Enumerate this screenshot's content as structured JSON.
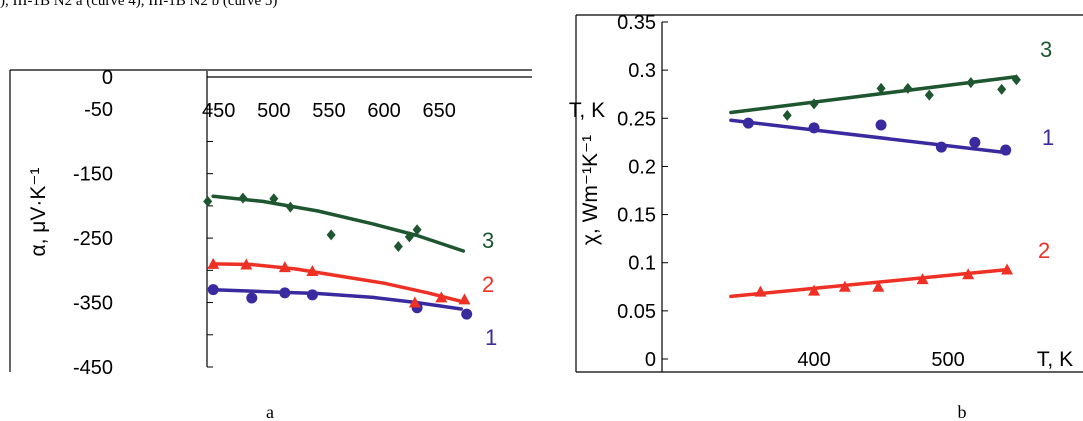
{
  "caption": "), III-1B N2 a (curve 4), III-1B N2 b (curve 5)",
  "colors": {
    "curve1": "#3a2aa0",
    "curve2": "#ee3124",
    "curve3": "#1e5630"
  },
  "chart_data": [
    {
      "panel": "a",
      "type": "line",
      "xlabel": "T, K",
      "ylabel": "α, μV·K⁻¹",
      "x_ticks": [
        "450",
        "500",
        "550",
        "600",
        "650"
      ],
      "y_ticks": [
        "0",
        "-50",
        "-150",
        "-250",
        "-350",
        "-450"
      ],
      "xlim": [
        433,
        678
      ],
      "ylim": [
        -450,
        0
      ],
      "grid": false,
      "series": [
        {
          "name": "1",
          "color": "#3a2aa0",
          "marker": "circle",
          "x": [
            445,
            480,
            510,
            535,
            630,
            675
          ],
          "y": [
            -330,
            -343,
            -335,
            -338,
            -358,
            -368
          ],
          "fit_x": [
            445,
            490,
            540,
            590,
            630,
            670
          ],
          "fit_y": [
            -330,
            -333,
            -336,
            -342,
            -350,
            -360
          ]
        },
        {
          "name": "2",
          "color": "#ee3124",
          "marker": "triangle",
          "x": [
            445,
            475,
            510,
            535,
            628,
            652,
            673
          ],
          "y": [
            -290,
            -291,
            -295,
            -301,
            -350,
            -342,
            -345
          ],
          "fit_x": [
            445,
            480,
            520,
            560,
            600,
            640,
            672
          ],
          "fit_y": [
            -290,
            -291,
            -298,
            -309,
            -320,
            -335,
            -349
          ]
        },
        {
          "name": "3",
          "color": "#1e5630",
          "marker": "diamond",
          "x": [
            440,
            472,
            500,
            515,
            552,
            613,
            623,
            630
          ],
          "y": [
            -193,
            -188,
            -189,
            -202,
            -245,
            -263,
            -248,
            -237
          ],
          "fit_x": [
            445,
            490,
            540,
            590,
            630,
            672
          ],
          "fit_y": [
            -185,
            -193,
            -208,
            -228,
            -246,
            -270
          ]
        }
      ]
    },
    {
      "panel": "b",
      "type": "line",
      "xlabel": "T, K",
      "ylabel": "χ, Wm⁻¹K⁻¹",
      "x_ticks": [
        "400",
        "500"
      ],
      "y_ticks": [
        "0.35",
        "0.3",
        "0.25",
        "0.2",
        "0.15",
        "0.1",
        "0.05",
        "0"
      ],
      "xlim": [
        300,
        585
      ],
      "ylim": [
        0,
        0.35
      ],
      "grid": false,
      "series": [
        {
          "name": "1",
          "color": "#3a2aa0",
          "marker": "circle",
          "x": [
            351,
            400,
            450,
            495,
            520,
            543
          ],
          "y": [
            0.245,
            0.24,
            0.243,
            0.22,
            0.225,
            0.217
          ],
          "fit_x": [
            338,
            545
          ],
          "fit_y": [
            0.248,
            0.214
          ]
        },
        {
          "name": "2",
          "color": "#ee3124",
          "marker": "triangle",
          "x": [
            360,
            400,
            423,
            448,
            481,
            515,
            544
          ],
          "y": [
            0.07,
            0.071,
            0.075,
            0.075,
            0.083,
            0.088,
            0.093
          ],
          "fit_x": [
            338,
            545
          ],
          "fit_y": [
            0.065,
            0.093
          ]
        },
        {
          "name": "3",
          "color": "#1e5630",
          "marker": "diamond",
          "x": [
            380,
            400,
            450,
            470,
            486,
            517,
            540,
            551
          ],
          "y": [
            0.253,
            0.265,
            0.281,
            0.281,
            0.274,
            0.287,
            0.28,
            0.29
          ],
          "fit_x": [
            338,
            550
          ],
          "fit_y": [
            0.256,
            0.293
          ]
        }
      ]
    }
  ]
}
